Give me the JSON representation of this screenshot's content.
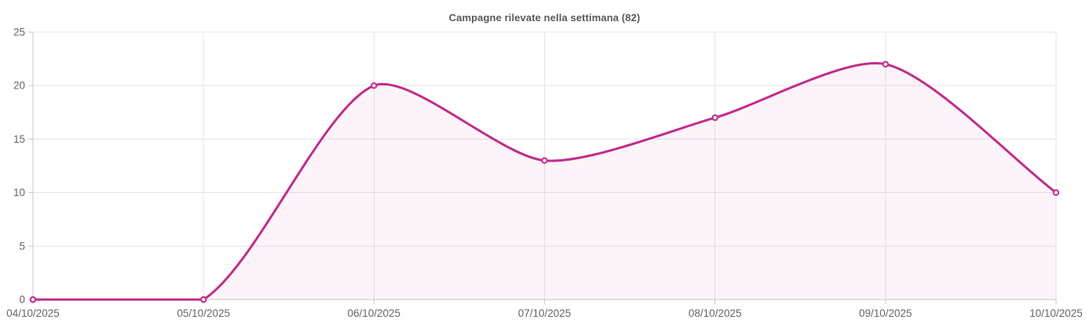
{
  "chart_data": {
    "type": "line",
    "title": "Campagne rilevate nella settimana (82)",
    "total_in_title": 82,
    "categories": [
      "04/10/2025",
      "05/10/2025",
      "06/10/2025",
      "07/10/2025",
      "08/10/2025",
      "09/10/2025",
      "10/10/2025"
    ],
    "series": [
      {
        "name": "Campagne rilevate",
        "values": [
          0,
          0,
          20,
          13,
          17,
          22,
          10
        ]
      }
    ],
    "xlabel": "",
    "ylabel": "",
    "ylim": [
      0,
      25
    ],
    "yticks": [
      0,
      5,
      10,
      15,
      20,
      25
    ],
    "grid": true,
    "legend_position": "none",
    "smooth": true,
    "area_filled": true,
    "style": {
      "line_color": "#c22c8a",
      "point_fill": "#fdeff7",
      "area_fill": "rgba(194,44,138,0.05)",
      "grid_color": "#e6e6e6",
      "axis_color": "#c9c9c9",
      "tick_label_color": "#666666",
      "title_color": "#595959"
    }
  }
}
